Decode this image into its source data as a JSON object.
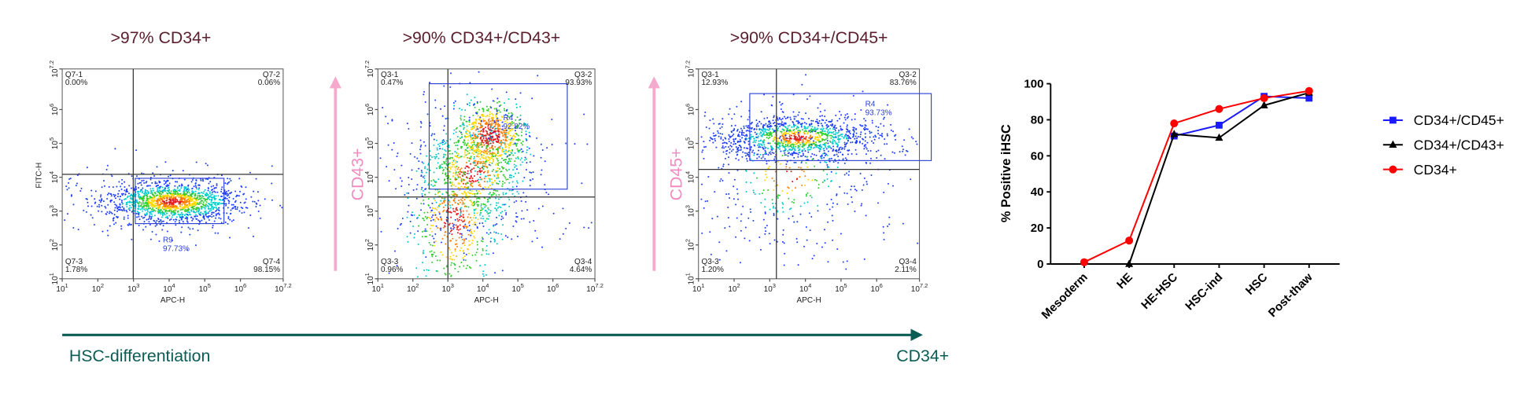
{
  "panels": [
    {
      "title": ">97% CD34+",
      "x_label": "APC-H",
      "y_label": "FITC-H",
      "quadrants": [
        {
          "name": "Q7-1",
          "pct": "0.00%"
        },
        {
          "name": "Q7-2",
          "pct": "0.06%"
        },
        {
          "name": "Q7-3",
          "pct": "1.78%"
        },
        {
          "name": "Q7-4",
          "pct": "98.15%"
        }
      ],
      "gate": {
        "name": "R9",
        "pct": "97.73%"
      }
    },
    {
      "title": ">90% CD34+/CD43+",
      "marker": "CD43+",
      "x_label": "APC-H",
      "quadrants": [
        {
          "name": "Q3-1",
          "pct": "0.47%"
        },
        {
          "name": "Q3-2",
          "pct": "93.93%"
        },
        {
          "name": "Q3-3",
          "pct": "0.96%"
        },
        {
          "name": "Q3-4",
          "pct": "4.64%"
        }
      ],
      "gate": {
        "name": "R4",
        "pct": "92.82%"
      }
    },
    {
      "title": ">90% CD34+/CD45+",
      "marker": "CD45+",
      "x_label": "APC-H",
      "quadrants": [
        {
          "name": "Q3-1",
          "pct": "12.93%"
        },
        {
          "name": "Q3-2",
          "pct": "83.76%"
        },
        {
          "name": "Q3-3",
          "pct": "1.20%"
        },
        {
          "name": "Q3-4",
          "pct": "2.11%"
        }
      ],
      "gate": {
        "name": "R4",
        "pct": "93.73%"
      }
    }
  ],
  "axis_ticks": [
    {
      "base": "10",
      "exp": 1
    },
    {
      "base": "10",
      "exp": 2
    },
    {
      "base": "10",
      "exp": 3
    },
    {
      "base": "10",
      "exp": 4
    },
    {
      "base": "10",
      "exp": 5
    },
    {
      "base": "10",
      "exp": 6
    },
    {
      "base": "10",
      "exp": 7.2
    }
  ],
  "timeline": {
    "start": "HSC-differentiation",
    "end": "CD34+"
  },
  "chart_data": {
    "type": "line",
    "y_label": "% Positive iHSC",
    "categories": [
      "Mesoderm",
      "HE",
      "HE-HSC",
      "HSC-ind",
      "HSC",
      "Post-thaw"
    ],
    "series": [
      {
        "name": "CD34+/CD45+",
        "color": "#1a1aff",
        "marker": "square",
        "values": [
          null,
          null,
          71,
          77,
          93,
          92
        ]
      },
      {
        "name": "CD34+/CD43+",
        "color": "#000000",
        "marker": "triangle",
        "values": [
          null,
          0,
          72,
          70,
          88,
          95
        ]
      },
      {
        "name": "CD34+",
        "color": "#ff0000",
        "marker": "circle",
        "values": [
          1,
          13,
          78,
          86,
          92,
          96
        ]
      }
    ],
    "ylim": [
      0,
      100
    ],
    "yticks": [
      0,
      20,
      40,
      60,
      80,
      100
    ],
    "legend": "right"
  }
}
